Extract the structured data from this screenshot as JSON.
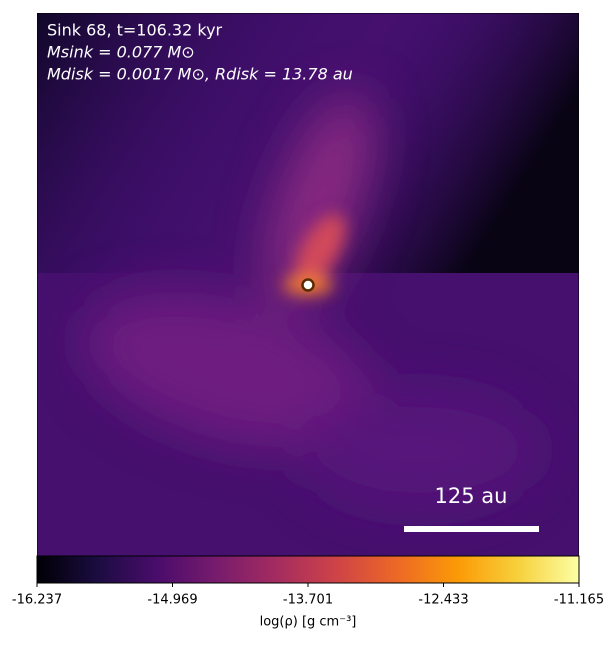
{
  "chart_data": {
    "type": "image",
    "annotations": [
      "Sink 68, t=106.32 kyr",
      "Msink = 0.077 M⊙",
      "Mdisk = 0.0017 M⊙, Rdisk = 13.78 au"
    ],
    "scalebar_label": "125 au",
    "colormap": "inferno",
    "clim": [
      -16.237,
      -11.165
    ],
    "cticks": [
      -16.237,
      -14.969,
      -13.701,
      -12.433,
      -11.165
    ],
    "colorbar_label": "log(ρ) [g cm⁻³]"
  }
}
